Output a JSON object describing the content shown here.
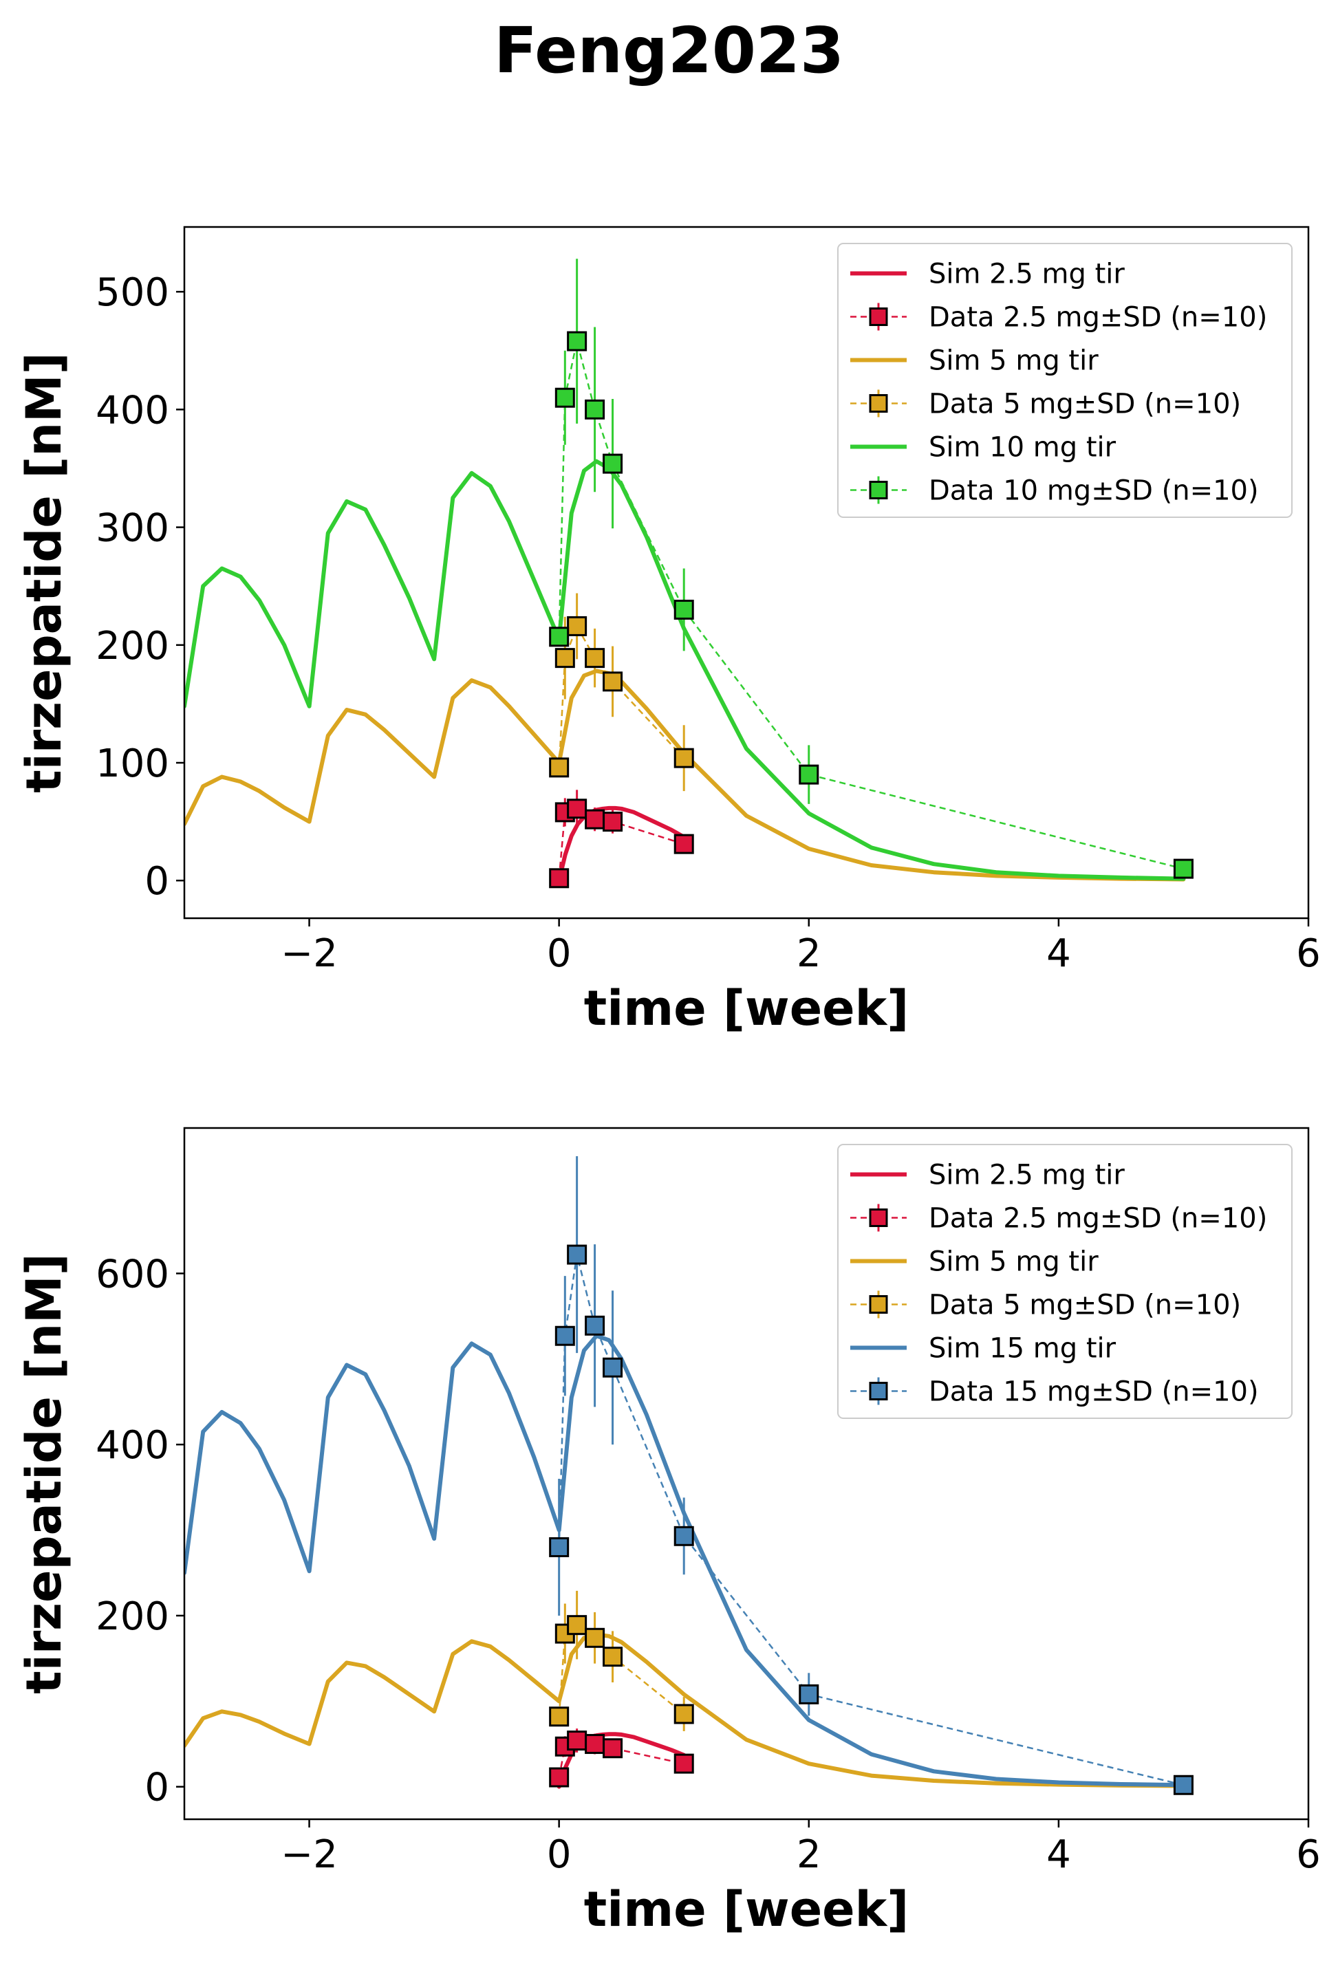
{
  "figure_title": "Feng2023",
  "chart_data": [
    {
      "type": "line",
      "xlabel": "time [week]",
      "ylabel": "tirzepatide [nM]",
      "xlim": [
        -3,
        6
      ],
      "ylim": [
        -32,
        555
      ],
      "xticks": [
        -2,
        0,
        2,
        4,
        6
      ],
      "yticks": [
        0,
        100,
        200,
        300,
        400,
        500
      ],
      "xtick_labels": [
        "−2",
        "0",
        "2",
        "4",
        "6"
      ],
      "ytick_labels": [
        "0",
        "100",
        "200",
        "300",
        "400",
        "500"
      ],
      "grid": false,
      "legend_position": "top-right",
      "series": [
        {
          "name": "Sim 2.5 mg tir",
          "kind": "sim",
          "color": "#dc143c",
          "x": [
            0,
            0.05,
            0.1,
            0.15,
            0.2,
            0.25,
            0.3,
            0.35,
            0.4,
            0.45,
            0.5,
            0.6,
            0.7,
            0.8,
            0.9,
            1.0
          ],
          "y": [
            0,
            22,
            38,
            48,
            54,
            58,
            60,
            61,
            61.5,
            61.5,
            61,
            58,
            53,
            48,
            43,
            37
          ]
        },
        {
          "name": "Data 2.5 mg±SD (n=10)",
          "kind": "data",
          "color": "#dc143c",
          "x": [
            0,
            0.0476,
            0.143,
            0.286,
            0.429,
            1.0
          ],
          "y": [
            2,
            58,
            61,
            52,
            50,
            31
          ],
          "sd": [
            0,
            12,
            16,
            10,
            10,
            6
          ]
        },
        {
          "name": "Sim 5 mg tir",
          "kind": "sim",
          "color": "#daa520",
          "x": [
            -3,
            -2.85,
            -2.7,
            -2.55,
            -2.4,
            -2.2,
            -2.0,
            -1.85,
            -1.7,
            -1.55,
            -1.4,
            -1.2,
            -1.0,
            -0.85,
            -0.7,
            -0.55,
            -0.4,
            -0.2,
            0,
            0.1,
            0.2,
            0.3,
            0.4,
            0.5,
            0.7,
            1.0,
            1.5,
            2.0,
            2.5,
            3.0,
            3.5,
            4.0,
            4.5,
            5.0
          ],
          "y": [
            48,
            80,
            88,
            84,
            76,
            62,
            50,
            123,
            145,
            141,
            128,
            108,
            88,
            155,
            170,
            164,
            148,
            124,
            100,
            155,
            174,
            178,
            176,
            169,
            146,
            108,
            55,
            27,
            13,
            7,
            4,
            2.5,
            1.5,
            1
          ]
        },
        {
          "name": "Data 5 mg±SD (n=10)",
          "kind": "data",
          "color": "#daa520",
          "x": [
            0,
            0.0476,
            0.143,
            0.286,
            0.429,
            1.0,
            2.0,
            5.0
          ],
          "y": [
            96,
            189,
            216,
            189,
            169,
            104,
            null,
            null
          ],
          "sd": [
            0,
            35,
            28,
            25,
            30,
            28,
            0,
            0
          ]
        },
        {
          "name": "Sim 10 mg tir",
          "kind": "sim",
          "color": "#32cd32",
          "x": [
            -3,
            -2.85,
            -2.7,
            -2.55,
            -2.4,
            -2.2,
            -2.0,
            -1.85,
            -1.7,
            -1.55,
            -1.4,
            -1.2,
            -1.0,
            -0.85,
            -0.7,
            -0.55,
            -0.4,
            -0.2,
            0,
            0.1,
            0.2,
            0.3,
            0.4,
            0.5,
            0.7,
            1.0,
            1.5,
            2.0,
            2.5,
            3.0,
            3.5,
            4.0,
            4.5,
            5.0
          ],
          "y": [
            148,
            250,
            265,
            258,
            238,
            200,
            148,
            295,
            322,
            315,
            285,
            240,
            188,
            325,
            346,
            335,
            305,
            255,
            205,
            312,
            348,
            356,
            350,
            336,
            292,
            214,
            112,
            57,
            28,
            14,
            7,
            4,
            2.5,
            1.5
          ]
        },
        {
          "name": "Data 10 mg±SD (n=10)",
          "kind": "data",
          "color": "#32cd32",
          "x": [
            0,
            0.0476,
            0.143,
            0.286,
            0.429,
            1.0,
            2.0,
            5.0
          ],
          "y": [
            207,
            410,
            458,
            400,
            354,
            230,
            90,
            10
          ],
          "sd": [
            0,
            40,
            70,
            70,
            55,
            35,
            25,
            5
          ]
        }
      ]
    },
    {
      "type": "line",
      "xlabel": "time [week]",
      "ylabel": "tirzepatide [nM]",
      "xlim": [
        -3,
        6
      ],
      "ylim": [
        -38,
        770
      ],
      "xticks": [
        -2,
        0,
        2,
        4,
        6
      ],
      "yticks": [
        0,
        200,
        400,
        600
      ],
      "xtick_labels": [
        "−2",
        "0",
        "2",
        "4",
        "6"
      ],
      "ytick_labels": [
        "0",
        "200",
        "400",
        "600"
      ],
      "grid": false,
      "legend_position": "top-right",
      "series": [
        {
          "name": "Sim 2.5 mg tir",
          "kind": "sim",
          "color": "#dc143c",
          "x": [
            0,
            0.05,
            0.1,
            0.15,
            0.2,
            0.25,
            0.3,
            0.35,
            0.4,
            0.45,
            0.5,
            0.6,
            0.7,
            0.8,
            0.9,
            1.0
          ],
          "y": [
            0,
            22,
            38,
            48,
            54,
            58,
            60,
            61,
            61.5,
            61.5,
            61,
            58,
            53,
            48,
            43,
            37
          ]
        },
        {
          "name": "Data 2.5 mg±SD (n=10)",
          "kind": "data",
          "color": "#dc143c",
          "x": [
            0,
            0.0476,
            0.143,
            0.286,
            0.429,
            1.0
          ],
          "y": [
            11,
            47,
            54,
            50,
            45,
            27
          ],
          "sd": [
            0,
            12,
            14,
            12,
            10,
            6
          ]
        },
        {
          "name": "Sim 5 mg tir",
          "kind": "sim",
          "color": "#daa520",
          "x": [
            -3,
            -2.85,
            -2.7,
            -2.55,
            -2.4,
            -2.2,
            -2.0,
            -1.85,
            -1.7,
            -1.55,
            -1.4,
            -1.2,
            -1.0,
            -0.85,
            -0.7,
            -0.55,
            -0.4,
            -0.2,
            0,
            0.1,
            0.2,
            0.3,
            0.4,
            0.5,
            0.7,
            1.0,
            1.5,
            2.0,
            2.5,
            3.0,
            3.5,
            4.0,
            4.5,
            5.0
          ],
          "y": [
            48,
            80,
            88,
            84,
            76,
            62,
            50,
            123,
            145,
            141,
            128,
            108,
            88,
            155,
            170,
            164,
            148,
            124,
            100,
            155,
            174,
            178,
            176,
            169,
            146,
            108,
            55,
            27,
            13,
            7,
            4,
            2.5,
            1.5,
            1
          ]
        },
        {
          "name": "Data 5 mg±SD (n=10)",
          "kind": "data",
          "color": "#daa520",
          "x": [
            0,
            0.0476,
            0.143,
            0.286,
            0.429,
            1.0
          ],
          "y": [
            82,
            179,
            189,
            174,
            152,
            85
          ],
          "sd": [
            0,
            35,
            40,
            30,
            30,
            20
          ]
        },
        {
          "name": "Sim 15 mg tir",
          "kind": "sim",
          "color": "#4682b4",
          "x": [
            -3,
            -2.85,
            -2.7,
            -2.55,
            -2.4,
            -2.2,
            -2.0,
            -1.85,
            -1.7,
            -1.55,
            -1.4,
            -1.2,
            -1.0,
            -0.85,
            -0.7,
            -0.55,
            -0.4,
            -0.2,
            0,
            0.1,
            0.2,
            0.3,
            0.4,
            0.5,
            0.7,
            1.0,
            1.5,
            2.0,
            2.5,
            3.0,
            3.5,
            4.0,
            4.5,
            5.0
          ],
          "y": [
            250,
            415,
            438,
            425,
            395,
            335,
            252,
            455,
            493,
            482,
            440,
            375,
            290,
            490,
            518,
            505,
            460,
            385,
            300,
            455,
            510,
            527,
            522,
            500,
            435,
            320,
            160,
            78,
            38,
            18,
            9,
            5,
            3,
            2
          ]
        },
        {
          "name": "Data 15 mg±SD (n=10)",
          "kind": "data",
          "color": "#4682b4",
          "x": [
            0,
            0.0476,
            0.143,
            0.286,
            0.429,
            1.0,
            2.0,
            5.0
          ],
          "y": [
            280,
            527,
            622,
            539,
            490,
            293,
            108,
            2
          ],
          "sd": [
            80,
            70,
            115,
            95,
            90,
            45,
            25,
            3
          ]
        }
      ]
    }
  ]
}
